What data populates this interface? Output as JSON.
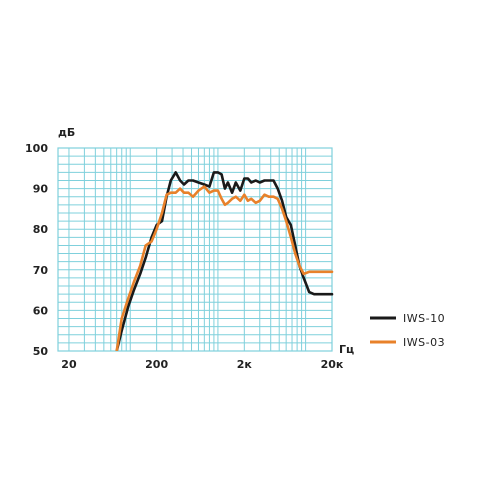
{
  "chart_data": {
    "type": "line",
    "ylabel": "дБ",
    "xlabel": "Гц",
    "x_scale": "log",
    "xlim": [
      15,
      20000
    ],
    "ylim": [
      50,
      100
    ],
    "grid": true,
    "legend_position": "right",
    "x_ticks": [
      {
        "value": 20,
        "label": "20"
      },
      {
        "value": 200,
        "label": "200"
      },
      {
        "value": 2000,
        "label": "2к"
      },
      {
        "value": 20000,
        "label": "20к"
      }
    ],
    "y_ticks": [
      {
        "value": 50,
        "label": "50"
      },
      {
        "value": 60,
        "label": "60"
      },
      {
        "value": 70,
        "label": "70"
      },
      {
        "value": 80,
        "label": "80"
      },
      {
        "value": 90,
        "label": "90"
      },
      {
        "value": 100,
        "label": "100"
      }
    ],
    "colors": {
      "grid": "#7fd0dc",
      "frame": "#7fd0dc",
      "series_1": "#1a1a1a",
      "series_2": "#e8812a"
    },
    "series": [
      {
        "name": "IWS-10",
        "x": [
          70,
          80,
          95,
          110,
          130,
          150,
          175,
          200,
          230,
          260,
          290,
          330,
          370,
          410,
          460,
          520,
          600,
          700,
          800,
          900,
          1000,
          1100,
          1200,
          1300,
          1450,
          1600,
          1800,
          2000,
          2200,
          2400,
          2700,
          3000,
          3400,
          3800,
          4300,
          4800,
          5400,
          6000,
          6800,
          7600,
          8500,
          9500,
          11000,
          12500,
          14000,
          16000,
          18000,
          20000
        ],
        "y": [
          50,
          55,
          61,
          65,
          69,
          73,
          78,
          81,
          82,
          88,
          92,
          94,
          92,
          91,
          92,
          92,
          91.5,
          91,
          90.5,
          94,
          94,
          93.5,
          90,
          91.5,
          89,
          91.5,
          89.5,
          92.5,
          92.5,
          91.5,
          92,
          91.5,
          92,
          92,
          92,
          90,
          87,
          83,
          81,
          76,
          71,
          68,
          64.5,
          64,
          64,
          64,
          64,
          64
        ]
      },
      {
        "name": "IWS-03",
        "x": [
          70,
          80,
          95,
          110,
          130,
          150,
          175,
          200,
          230,
          260,
          290,
          330,
          370,
          410,
          460,
          520,
          600,
          700,
          800,
          900,
          1000,
          1100,
          1200,
          1300,
          1450,
          1600,
          1800,
          2000,
          2200,
          2400,
          2700,
          3000,
          3400,
          3800,
          4300,
          4800,
          5400,
          6000,
          6800,
          7600,
          8500,
          9500,
          11000,
          12500,
          14000,
          16000,
          18000,
          20000
        ],
        "y": [
          50,
          58,
          63,
          67,
          71,
          76,
          77,
          80,
          84,
          88.5,
          89,
          89,
          90,
          89,
          89,
          88,
          89.5,
          90.5,
          89,
          89.5,
          89.5,
          87.5,
          86,
          86.5,
          87.5,
          88,
          87,
          88.5,
          87,
          87.5,
          86.5,
          87,
          88.5,
          88,
          88,
          87.5,
          85,
          82,
          78,
          74,
          71,
          69,
          69.5,
          69.5,
          69.5,
          69.5,
          69.5,
          69.5
        ]
      }
    ]
  }
}
